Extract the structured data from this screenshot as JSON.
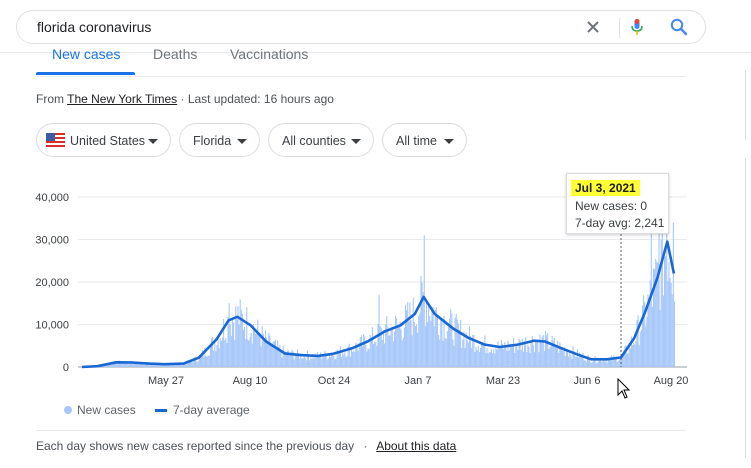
{
  "search": {
    "query": "florida coronavirus"
  },
  "tabs": [
    {
      "label": "New cases",
      "active": true
    },
    {
      "label": "Deaths",
      "active": false
    },
    {
      "label": "Vaccinations",
      "active": false
    }
  ],
  "source": {
    "prefix": "From ",
    "name": "The New York Times",
    "updated": " · Last updated: 16 hours ago"
  },
  "filters": [
    {
      "label": "United States",
      "icon": "us-flag-icon"
    },
    {
      "label": "Florida"
    },
    {
      "label": "All counties"
    },
    {
      "label": "All time"
    }
  ],
  "tooltip": {
    "date": "Jul 3, 2021",
    "new_cases": "New cases: 0",
    "avg": "7-day avg: 2,241"
  },
  "legend": {
    "bars": "New cases",
    "line": "7-day average"
  },
  "footer": {
    "note": "Each day shows new cases reported since the previous day",
    "sep": "·",
    "about": "About this data"
  },
  "colors": {
    "bar": "#a8c7fa",
    "line": "#1967d2",
    "accent": "#1a73e8",
    "highlight": "#ffff33"
  },
  "chart_data": {
    "type": "bar",
    "y_ticks": [
      "40,000",
      "30,000",
      "20,000",
      "10,000",
      "0"
    ],
    "ylim": [
      0,
      40000
    ],
    "x_ticks": [
      "May 27",
      "Aug 10",
      "Oct 24",
      "Jan 7",
      "Mar 23",
      "Jun 6",
      "Aug 20"
    ],
    "x_range": [
      "2020-03-01",
      "2021-08-21"
    ],
    "grid": true,
    "legend_position": "bottom-left",
    "avg_series": [
      [
        "2020-03-01",
        0
      ],
      [
        "2020-03-15",
        200
      ],
      [
        "2020-04-01",
        1100
      ],
      [
        "2020-04-15",
        1050
      ],
      [
        "2020-05-01",
        800
      ],
      [
        "2020-05-15",
        650
      ],
      [
        "2020-06-01",
        800
      ],
      [
        "2020-06-15",
        2200
      ],
      [
        "2020-07-01",
        6500
      ],
      [
        "2020-07-12",
        11000
      ],
      [
        "2020-07-20",
        11800
      ],
      [
        "2020-08-01",
        9800
      ],
      [
        "2020-08-15",
        6000
      ],
      [
        "2020-09-01",
        3200
      ],
      [
        "2020-09-15",
        2800
      ],
      [
        "2020-10-01",
        2600
      ],
      [
        "2020-10-15",
        3100
      ],
      [
        "2020-11-01",
        4400
      ],
      [
        "2020-11-15",
        6000
      ],
      [
        "2020-12-01",
        8400
      ],
      [
        "2020-12-15",
        9800
      ],
      [
        "2020-12-28",
        12500
      ],
      [
        "2021-01-05",
        16500
      ],
      [
        "2021-01-15",
        12500
      ],
      [
        "2021-02-01",
        9000
      ],
      [
        "2021-02-15",
        6800
      ],
      [
        "2021-03-01",
        5300
      ],
      [
        "2021-03-15",
        4700
      ],
      [
        "2021-04-01",
        5300
      ],
      [
        "2021-04-15",
        6200
      ],
      [
        "2021-04-25",
        6000
      ],
      [
        "2021-05-10",
        4400
      ],
      [
        "2021-05-25",
        2900
      ],
      [
        "2021-06-06",
        1800
      ],
      [
        "2021-06-20",
        1800
      ],
      [
        "2021-07-03",
        2241
      ],
      [
        "2021-07-15",
        6800
      ],
      [
        "2021-07-25",
        13000
      ],
      [
        "2021-08-05",
        21000
      ],
      [
        "2021-08-14",
        29500
      ],
      [
        "2021-08-20",
        22000
      ]
    ],
    "bar_spikes": [
      [
        "2021-01-05",
        31000
      ],
      [
        "2020-11-25",
        17000
      ],
      [
        "2020-07-12",
        15000
      ],
      [
        "2021-07-30",
        34000
      ],
      [
        "2021-08-06",
        36000
      ],
      [
        "2021-08-13",
        38000
      ],
      [
        "2021-08-19",
        34000
      ]
    ]
  }
}
